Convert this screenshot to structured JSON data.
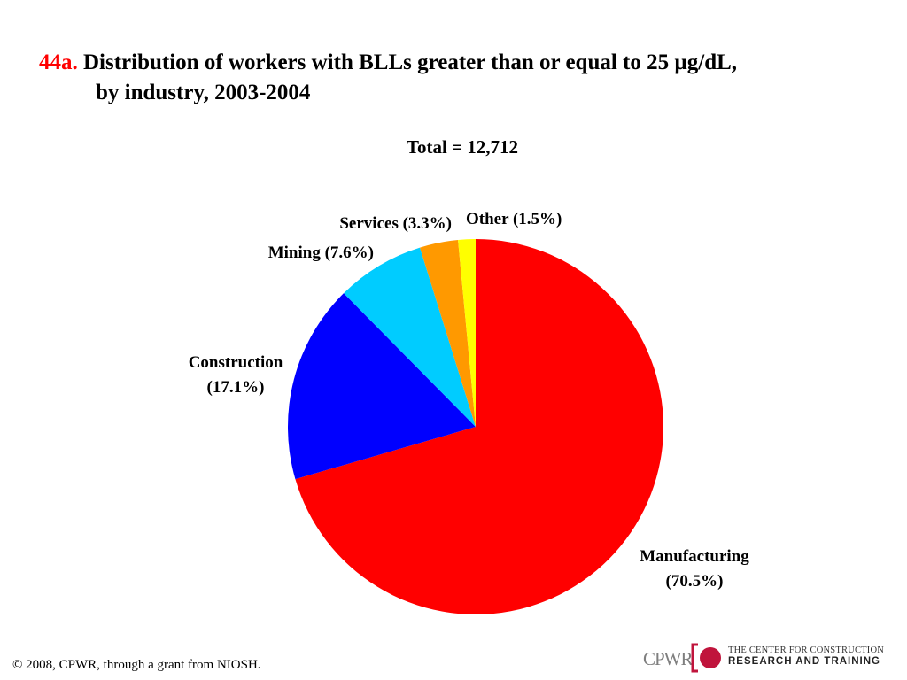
{
  "title": {
    "number": "44a.",
    "line1": "Distribution of workers with BLLs greater than or equal to 25 µg/dL,",
    "line2": "by industry, 2003-2004"
  },
  "subtitle": "Total = 12,712",
  "chart_data": {
    "type": "pie",
    "title": "Distribution of workers with BLLs greater than or equal to 25 µg/dL, by industry, 2003-2004",
    "subtitle": "Total = 12,712",
    "start": "12 o'clock, clockwise",
    "slices": [
      {
        "name": "Manufacturing",
        "value": 70.5,
        "label": [
          "Manufacturing",
          "(70.5%)"
        ],
        "color": "#ff0000"
      },
      {
        "name": "Construction",
        "value": 17.1,
        "label": [
          "Construction",
          "(17.1%)"
        ],
        "color": "#0000ff"
      },
      {
        "name": "Mining",
        "value": 7.6,
        "label": [
          "Mining (7.6%)"
        ],
        "color": "#00ccff"
      },
      {
        "name": "Services",
        "value": 3.3,
        "label": [
          "Services (3.3%)"
        ],
        "color": "#ff9900"
      },
      {
        "name": "Other",
        "value": 1.5,
        "label": [
          "Other (1.5%)"
        ],
        "color": "#ffff00"
      }
    ]
  },
  "footer": "© 2008, CPWR, through a grant from NIOSH.",
  "logo": {
    "abbr": "CPWR",
    "line1": "THE CENTER FOR CONSTRUCTION",
    "line2": "RESEARCH AND TRAINING",
    "color": "#c0143c"
  }
}
